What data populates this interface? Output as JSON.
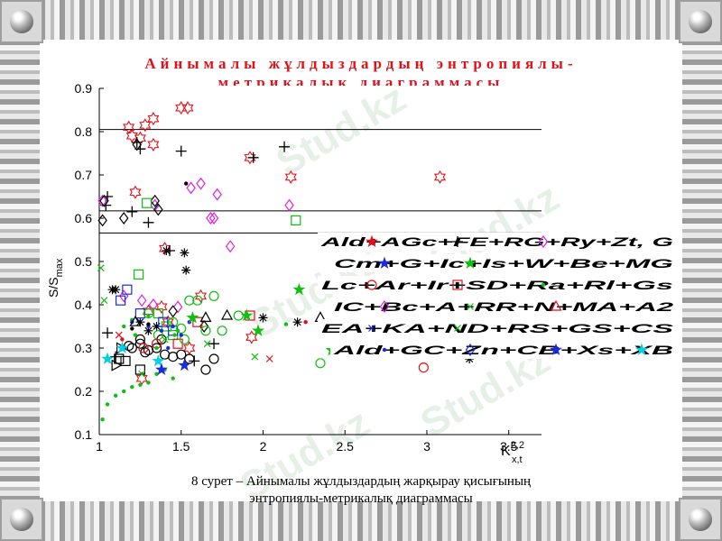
{
  "slide": {
    "title_line1": "Айнымалы жұлдыздардың энтропиялы-",
    "title_line2": "метрикалық диаграммасы",
    "caption_line1": "8 сурет – Айнымалы жұлдыздардың жарқырау қисығының",
    "caption_line2": "энтропиялы-метрикалық диаграммасы",
    "watermark": "Stud.kz",
    "corner_icon": "round-button-icon"
  },
  "chart_data": {
    "type": "scatter",
    "title": "",
    "xlabel_base": "K",
    "xlabel_sup": "2,2",
    "xlabel_sub": "x,t",
    "ylabel_base": "S/S",
    "ylabel_sub": "max",
    "xlim": [
      1,
      3.7
    ],
    "ylim": [
      0.1,
      0.9
    ],
    "xticks": [
      1,
      1.5,
      2,
      2.5,
      3,
      3.5
    ],
    "xtick_labels": [
      "1",
      "1.5",
      "2",
      "2.5",
      "3",
      "3.5"
    ],
    "yticks": [
      0.1,
      0.2,
      0.3,
      0.4,
      0.5,
      0.6,
      0.7,
      0.8,
      0.9
    ],
    "ytick_labels": [
      "0.1",
      "0.2",
      "0.3",
      "0.4",
      "0.5",
      "0.6",
      "0.7",
      "0.8",
      "0.9"
    ],
    "grid": false,
    "hlines": [
      0.805,
      0.617,
      0.566
    ],
    "legend_position": "right",
    "series": [
      {
        "marker": "hexagram",
        "color": "#e3101a",
        "x": [
          1.18,
          1.28,
          1.33,
          1.5,
          1.54,
          1.2,
          1.25,
          1.33,
          1.92,
          2.17,
          3.08,
          1.22,
          1.4,
          1.38,
          1.3,
          1.26,
          1.42,
          1.55,
          1.93,
          1.62
        ],
        "y": [
          0.81,
          0.815,
          0.83,
          0.855,
          0.855,
          0.79,
          0.785,
          0.77,
          0.74,
          0.695,
          0.695,
          0.66,
          0.53,
          0.395,
          0.385,
          0.23,
          0.36,
          0.3,
          0.325,
          0.42
        ]
      },
      {
        "marker": "plus",
        "color": "#000000",
        "x": [
          1.23,
          1.25,
          1.5,
          2.13,
          1.94,
          1.04,
          1.05,
          1.2,
          1.3,
          1.43,
          1.05,
          1.1,
          1.58,
          1.7
        ],
        "y": [
          0.775,
          0.76,
          0.755,
          0.765,
          0.74,
          0.63,
          0.65,
          0.615,
          0.59,
          0.525,
          0.335,
          0.28,
          0.27,
          0.31
        ]
      },
      {
        "marker": "asterisk",
        "color": "#000000",
        "x": [
          1.41,
          1.52,
          1.53,
          1.08,
          1.1,
          1.25,
          1.35,
          1.3,
          2.0,
          2.21,
          3.26
        ],
        "y": [
          0.525,
          0.52,
          0.48,
          0.435,
          0.435,
          0.36,
          0.35,
          0.34,
          0.37,
          0.36,
          0.275
        ]
      },
      {
        "marker": "diamond",
        "color": "#e020e0",
        "x": [
          1.02,
          1.34,
          1.62,
          1.56,
          1.68,
          1.7,
          1.72,
          1.8,
          2.16,
          1.15,
          1.48,
          1.26,
          1.33
        ],
        "y": [
          0.64,
          0.63,
          0.68,
          0.67,
          0.6,
          0.6,
          0.655,
          0.535,
          0.63,
          0.42,
          0.395,
          0.41,
          0.4
        ]
      },
      {
        "marker": "diamond",
        "color": "#000000",
        "x": [
          1.02,
          1.03,
          1.15,
          1.23,
          1.34,
          1.36,
          1.45,
          1.64
        ],
        "y": [
          0.595,
          0.64,
          0.6,
          0.77,
          0.64,
          0.62,
          0.385,
          0.35
        ]
      },
      {
        "marker": "square",
        "color": "#10c010",
        "x": [
          1.29,
          2.2,
          1.24,
          1.36,
          1.41,
          1.45
        ],
        "y": [
          0.635,
          0.595,
          0.47,
          0.38,
          0.35,
          0.33
        ]
      },
      {
        "marker": "square",
        "color": "#1a2adf",
        "x": [
          1.17,
          1.13,
          1.25,
          1.39,
          1.45
        ],
        "y": [
          0.435,
          0.41,
          0.38,
          0.36,
          0.34
        ]
      },
      {
        "marker": "square",
        "color": "#000000",
        "x": [
          1.12,
          1.16,
          1.25
        ],
        "y": [
          0.275,
          0.27,
          0.25
        ]
      },
      {
        "marker": "square",
        "color": "#e3101a",
        "x": [
          1.92,
          1.6,
          1.48
        ],
        "y": [
          0.375,
          0.36,
          0.31
        ]
      },
      {
        "marker": "circle",
        "color": "#000000",
        "x": [
          1.2,
          1.25,
          1.3,
          1.35,
          1.4,
          1.45,
          1.5,
          1.55,
          1.65,
          1.7,
          1.25,
          1.38,
          1.28,
          1.18
        ],
        "y": [
          0.3,
          0.31,
          0.295,
          0.3,
          0.285,
          0.28,
          0.285,
          0.275,
          0.25,
          0.275,
          0.32,
          0.32,
          0.29,
          0.305
        ]
      },
      {
        "marker": "circle",
        "color": "#10c010",
        "x": [
          1.3,
          1.45,
          1.5,
          1.55,
          1.6,
          1.7,
          1.75,
          1.85,
          2.35,
          1.65,
          1.52,
          1.36
        ],
        "y": [
          0.38,
          0.36,
          0.345,
          0.41,
          0.41,
          0.42,
          0.34,
          0.375,
          0.265,
          0.34,
          0.32,
          0.33
        ]
      },
      {
        "marker": "circle",
        "color": "#e3101a",
        "x": [
          2.98,
          1.27,
          1.35
        ],
        "y": [
          0.255,
          0.3,
          0.31
        ]
      },
      {
        "marker": "dot",
        "color": "#10c010",
        "x": [
          1.02,
          1.05,
          1.1,
          1.15,
          1.2,
          1.25,
          1.3,
          1.35,
          1.4,
          1.45,
          1.15,
          1.22,
          1.35,
          1.48,
          2.14,
          1.2,
          1.3,
          1.46
        ],
        "y": [
          0.135,
          0.17,
          0.19,
          0.2,
          0.21,
          0.215,
          0.22,
          0.24,
          0.25,
          0.23,
          0.35,
          0.33,
          0.3,
          0.34,
          0.355,
          0.365,
          0.375,
          0.33
        ]
      },
      {
        "marker": "dot",
        "color": "#1a2adf",
        "x": [
          1.2,
          1.3,
          1.38,
          1.45,
          1.5,
          1.55,
          1.42
        ],
        "y": [
          0.36,
          0.35,
          0.34,
          0.35,
          0.33,
          0.36,
          0.3
        ]
      },
      {
        "marker": "dot",
        "color": "#000000",
        "x": [
          1.53,
          1.2,
          1.3
        ],
        "y": [
          0.68,
          0.345,
          0.355
        ]
      },
      {
        "marker": "dot",
        "color": "#e3101a",
        "x": [
          2.26,
          1.14
        ],
        "y": [
          0.36,
          0.32
        ]
      },
      {
        "marker": "triangle-up",
        "color": "#000000",
        "x": [
          1.78,
          2.35,
          1.65,
          1.22
        ],
        "y": [
          0.375,
          0.37,
          0.37,
          0.36
        ]
      },
      {
        "marker": "triangle-right",
        "color": "#000000",
        "x": [
          1.1,
          1.13
        ],
        "y": [
          0.26,
          0.3
        ]
      },
      {
        "marker": "x-cross",
        "color": "#10c010",
        "x": [
          1.01,
          1.03,
          1.26,
          1.95,
          1.66,
          1.4
        ],
        "y": [
          0.485,
          0.41,
          0.24,
          0.28,
          0.31,
          0.32
        ]
      },
      {
        "marker": "x-cross",
        "color": "#e3101a",
        "x": [
          2.04,
          1.12
        ],
        "y": [
          0.275,
          0.33
        ]
      },
      {
        "marker": "star-5",
        "color": "#10c010",
        "x": [
          2.22,
          2.42,
          1.97,
          1.9,
          1.57
        ],
        "y": [
          0.435,
          0.295,
          0.34,
          0.375,
          0.37
        ]
      },
      {
        "marker": "star-5",
        "color": "#00d0e0",
        "x": [
          1.05,
          1.14,
          1.36
        ],
        "y": [
          0.275,
          0.3,
          0.27
        ]
      },
      {
        "marker": "star-5",
        "color": "#1a2adf",
        "x": [
          1.38,
          1.52
        ],
        "y": [
          0.25,
          0.26
        ]
      }
    ],
    "legend_rows": [
      {
        "text": "Ald+AGc+FE+RG+Ry+Zt, G",
        "marks": [
          {
            "marker": "star-5",
            "color": "#e3101a"
          },
          {
            "marker": "plus",
            "color": "#000000"
          },
          {
            "marker": "diamond",
            "color": "#e020e0"
          }
        ]
      },
      {
        "text": "Cm+G+Ic+Is+W+Be+MG",
        "marks": [
          {
            "marker": "star-5",
            "color": "#1a2adf"
          },
          {
            "marker": "star-5",
            "color": "#10c010"
          }
        ]
      },
      {
        "text": "Lc+Ar+Ir+SD+Ra+Rl+Gs",
        "marks": [
          {
            "marker": "circle",
            "color": "#e3101a"
          },
          {
            "marker": "square",
            "color": "#e3101a"
          },
          {
            "marker": "dot",
            "color": "#10c010"
          }
        ]
      },
      {
        "text": "IC+Bc+A+RR+N+MA+A2",
        "marks": [
          {
            "marker": "diamond",
            "color": "#e020e0"
          },
          {
            "marker": "x-cross",
            "color": "#10c010"
          },
          {
            "marker": "triangle-up",
            "color": "#e3101a"
          }
        ]
      },
      {
        "text": "EA+KA+ND+RS+GS+CS",
        "marks": [
          {
            "marker": "x-cross",
            "color": "#1a2adf"
          },
          {
            "marker": "x-cross",
            "color": "#10c010"
          }
        ]
      },
      {
        "text": "Ald+GC+Zn+CB+Xs+XB",
        "marks": [
          {
            "marker": "dot",
            "color": "#1a2adf"
          },
          {
            "marker": "diamond",
            "color": "#1a2adf"
          },
          {
            "marker": "star-5",
            "color": "#1a2adf"
          },
          {
            "marker": "star-5",
            "color": "#00d0e0"
          }
        ]
      }
    ]
  }
}
